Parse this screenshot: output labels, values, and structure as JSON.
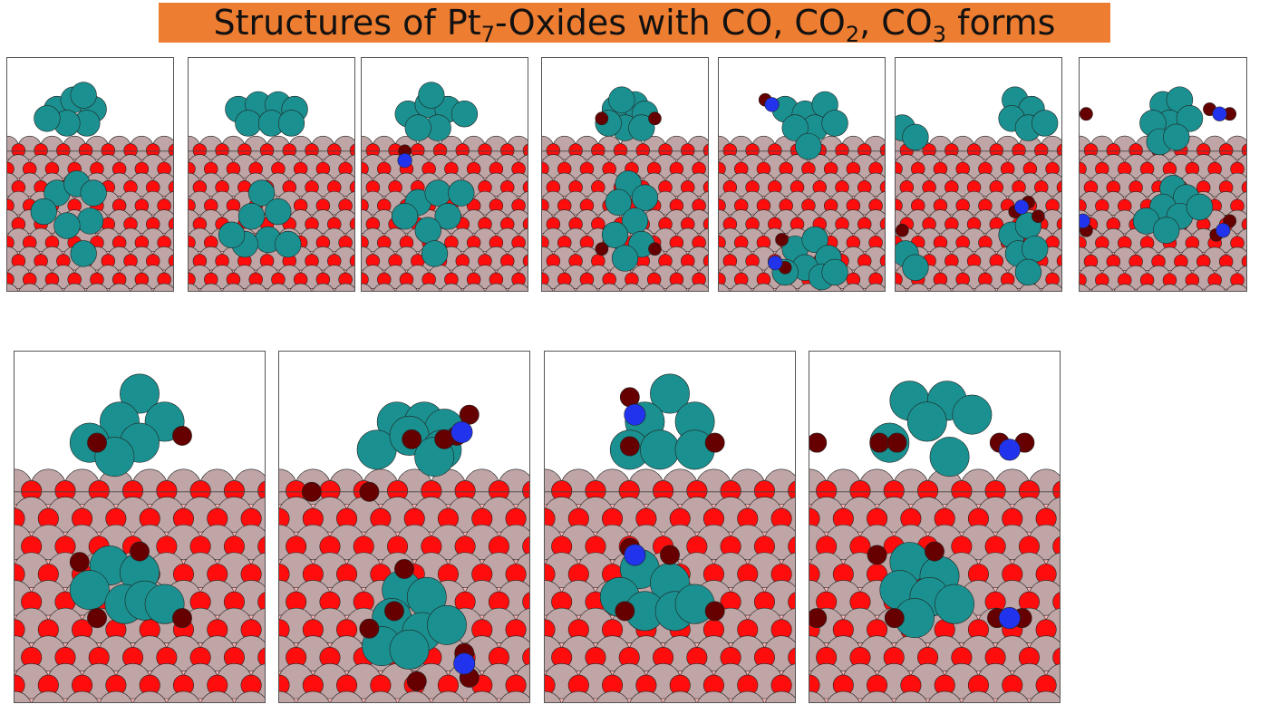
{
  "title": {
    "part1": "Structures of Pt",
    "sub1": "7",
    "part2": "-Oxides with CO, CO",
    "sub2": "2",
    "part3": ", CO",
    "sub3": "3",
    "part4": " forms"
  },
  "colors": {
    "banner": "#ED7D31",
    "platinum": "#1A9190",
    "surface_metal": "#BFA5A5",
    "lattice_oxygen": "#FF0D0D",
    "adsorbate_oxygen": "#660000",
    "carbon": "#2233EE",
    "substrate": "#FFB5B5"
  },
  "panels": [
    {
      "id": "structure-1",
      "pt": [
        [
          0.3,
          0.22
        ],
        [
          0.4,
          0.18
        ],
        [
          0.52,
          0.22
        ],
        [
          0.48,
          0.28
        ],
        [
          0.36,
          0.28
        ],
        [
          0.24,
          0.26
        ],
        [
          0.46,
          0.16
        ]
      ],
      "pt_sub": [
        [
          0.3,
          0.58
        ],
        [
          0.42,
          0.54
        ],
        [
          0.52,
          0.58
        ],
        [
          0.5,
          0.7
        ],
        [
          0.36,
          0.72
        ],
        [
          0.22,
          0.66
        ],
        [
          0.46,
          0.84
        ]
      ],
      "ads": [],
      "c": []
    },
    {
      "id": "structure-2",
      "pt": [
        [
          0.3,
          0.22
        ],
        [
          0.42,
          0.2
        ],
        [
          0.54,
          0.2
        ],
        [
          0.64,
          0.22
        ],
        [
          0.36,
          0.28
        ],
        [
          0.5,
          0.28
        ],
        [
          0.62,
          0.28
        ]
      ],
      "pt_sub": [
        [
          0.44,
          0.58
        ],
        [
          0.54,
          0.66
        ],
        [
          0.38,
          0.68
        ],
        [
          0.48,
          0.78
        ],
        [
          0.34,
          0.8
        ],
        [
          0.6,
          0.8
        ],
        [
          0.26,
          0.76
        ]
      ],
      "ads": [],
      "c": []
    },
    {
      "id": "structure-3",
      "pt": [
        [
          0.28,
          0.24
        ],
        [
          0.4,
          0.2
        ],
        [
          0.52,
          0.22
        ],
        [
          0.46,
          0.3
        ],
        [
          0.34,
          0.3
        ],
        [
          0.62,
          0.24
        ],
        [
          0.42,
          0.16
        ]
      ],
      "pt_sub": [
        [
          0.34,
          0.62
        ],
        [
          0.46,
          0.58
        ],
        [
          0.52,
          0.68
        ],
        [
          0.4,
          0.74
        ],
        [
          0.26,
          0.68
        ],
        [
          0.6,
          0.58
        ],
        [
          0.44,
          0.84
        ]
      ],
      "ads": [
        [
          0.26,
          0.4
        ]
      ],
      "c": [
        [
          0.26,
          0.44
        ]
      ]
    },
    {
      "id": "structure-4",
      "pt": [
        [
          0.44,
          0.22
        ],
        [
          0.56,
          0.2
        ],
        [
          0.62,
          0.24
        ],
        [
          0.5,
          0.3
        ],
        [
          0.4,
          0.28
        ],
        [
          0.6,
          0.3
        ],
        [
          0.48,
          0.18
        ]
      ],
      "pt_sub": [
        [
          0.52,
          0.54
        ],
        [
          0.62,
          0.6
        ],
        [
          0.46,
          0.62
        ],
        [
          0.56,
          0.7
        ],
        [
          0.44,
          0.76
        ],
        [
          0.6,
          0.8
        ],
        [
          0.5,
          0.86
        ]
      ],
      "ads": [
        [
          0.36,
          0.26
        ],
        [
          0.68,
          0.26
        ],
        [
          0.36,
          0.82
        ],
        [
          0.68,
          0.82
        ]
      ],
      "c": []
    },
    {
      "id": "structure-5",
      "pt": [
        [
          0.4,
          0.22
        ],
        [
          0.52,
          0.24
        ],
        [
          0.64,
          0.2
        ],
        [
          0.58,
          0.3
        ],
        [
          0.46,
          0.3
        ],
        [
          0.7,
          0.28
        ],
        [
          0.54,
          0.38
        ]
      ],
      "pt_sub": [
        [
          0.46,
          0.82
        ],
        [
          0.58,
          0.78
        ],
        [
          0.66,
          0.86
        ],
        [
          0.52,
          0.9
        ],
        [
          0.4,
          0.92
        ],
        [
          0.62,
          0.94
        ],
        [
          0.7,
          0.92
        ]
      ],
      "ads": [
        [
          0.28,
          0.18
        ],
        [
          0.38,
          0.78
        ],
        [
          0.4,
          0.9
        ]
      ],
      "c": [
        [
          0.32,
          0.2
        ],
        [
          0.34,
          0.88
        ]
      ]
    },
    {
      "id": "structure-6",
      "pt": [
        [
          0.72,
          0.18
        ],
        [
          0.82,
          0.22
        ],
        [
          0.7,
          0.26
        ],
        [
          0.8,
          0.3
        ],
        [
          0.9,
          0.28
        ],
        [
          0.04,
          0.3
        ],
        [
          0.12,
          0.34
        ]
      ],
      "pt_sub": [
        [
          0.7,
          0.76
        ],
        [
          0.8,
          0.72
        ],
        [
          0.74,
          0.84
        ],
        [
          0.84,
          0.82
        ],
        [
          0.06,
          0.84
        ],
        [
          0.12,
          0.9
        ],
        [
          0.8,
          0.92
        ]
      ],
      "ads": [
        [
          0.72,
          0.66
        ],
        [
          0.8,
          0.62
        ],
        [
          0.86,
          0.68
        ],
        [
          0.04,
          0.74
        ]
      ],
      "c": [
        [
          0.76,
          0.64
        ]
      ]
    },
    {
      "id": "structure-7",
      "pt": [
        [
          0.5,
          0.2
        ],
        [
          0.6,
          0.18
        ],
        [
          0.54,
          0.28
        ],
        [
          0.44,
          0.28
        ],
        [
          0.66,
          0.26
        ],
        [
          0.48,
          0.36
        ],
        [
          0.58,
          0.34
        ]
      ],
      "pt_sub": [
        [
          0.56,
          0.56
        ],
        [
          0.64,
          0.6
        ],
        [
          0.5,
          0.64
        ],
        [
          0.6,
          0.68
        ],
        [
          0.4,
          0.7
        ],
        [
          0.72,
          0.64
        ],
        [
          0.52,
          0.74
        ]
      ],
      "ads": [
        [
          0.04,
          0.24
        ],
        [
          0.78,
          0.22
        ],
        [
          0.9,
          0.24
        ],
        [
          0.04,
          0.74
        ],
        [
          0.82,
          0.76
        ],
        [
          0.9,
          0.7
        ]
      ],
      "c": [
        [
          0.84,
          0.24
        ],
        [
          0.86,
          0.74
        ],
        [
          0.02,
          0.7
        ]
      ]
    },
    {
      "id": "structure-8",
      "pt": [
        [
          0.5,
          0.12
        ],
        [
          0.42,
          0.2
        ],
        [
          0.6,
          0.2
        ],
        [
          0.5,
          0.26
        ],
        [
          0.3,
          0.26
        ],
        [
          0.4,
          0.3
        ]
      ],
      "pt_sub": [
        [
          0.38,
          0.61
        ],
        [
          0.5,
          0.63
        ],
        [
          0.3,
          0.68
        ],
        [
          0.44,
          0.72
        ],
        [
          0.52,
          0.71
        ],
        [
          0.6,
          0.72
        ]
      ],
      "ads": [
        [
          0.33,
          0.26
        ],
        [
          0.67,
          0.24
        ],
        [
          0.26,
          0.6
        ],
        [
          0.5,
          0.57
        ],
        [
          0.33,
          0.76
        ],
        [
          0.67,
          0.76
        ]
      ],
      "c": []
    },
    {
      "id": "structure-9",
      "pt": [
        [
          0.47,
          0.2
        ],
        [
          0.58,
          0.2
        ],
        [
          0.66,
          0.22
        ],
        [
          0.39,
          0.28
        ],
        [
          0.52,
          0.24
        ],
        [
          0.65,
          0.28
        ],
        [
          0.62,
          0.3
        ]
      ],
      "pt_sub": [
        [
          0.49,
          0.68
        ],
        [
          0.59,
          0.7
        ],
        [
          0.45,
          0.76
        ],
        [
          0.57,
          0.8
        ],
        [
          0.67,
          0.78
        ],
        [
          0.41,
          0.84
        ],
        [
          0.52,
          0.85
        ]
      ],
      "ads": [
        [
          0.76,
          0.18
        ],
        [
          0.71,
          0.24
        ],
        [
          0.53,
          0.25
        ],
        [
          0.66,
          0.25
        ],
        [
          0.13,
          0.4
        ],
        [
          0.36,
          0.4
        ],
        [
          0.5,
          0.62
        ],
        [
          0.36,
          0.79
        ],
        [
          0.46,
          0.74
        ],
        [
          0.55,
          0.94
        ],
        [
          0.76,
          0.93
        ],
        [
          0.74,
          0.86
        ]
      ],
      "c": [
        [
          0.73,
          0.23
        ],
        [
          0.74,
          0.89
        ]
      ]
    },
    {
      "id": "structure-10",
      "pt": [
        [
          0.5,
          0.12
        ],
        [
          0.4,
          0.2
        ],
        [
          0.6,
          0.2
        ],
        [
          0.34,
          0.28
        ],
        [
          0.46,
          0.28
        ],
        [
          0.6,
          0.28
        ]
      ],
      "pt_sub": [
        [
          0.38,
          0.62
        ],
        [
          0.5,
          0.66
        ],
        [
          0.3,
          0.7
        ],
        [
          0.4,
          0.74
        ],
        [
          0.52,
          0.74
        ],
        [
          0.6,
          0.72
        ]
      ],
      "ads": [
        [
          0.34,
          0.27
        ],
        [
          0.68,
          0.26
        ],
        [
          0.34,
          0.56
        ],
        [
          0.5,
          0.58
        ],
        [
          0.32,
          0.74
        ],
        [
          0.68,
          0.74
        ],
        [
          0.34,
          0.13
        ]
      ],
      "c": [
        [
          0.36,
          0.18
        ],
        [
          0.36,
          0.58
        ]
      ]
    },
    {
      "id": "structure-11",
      "pt": [
        [
          0.4,
          0.14
        ],
        [
          0.55,
          0.14
        ],
        [
          0.65,
          0.18
        ],
        [
          0.47,
          0.2
        ],
        [
          0.32,
          0.26
        ],
        [
          0.56,
          0.3
        ]
      ],
      "pt_sub": [
        [
          0.4,
          0.6
        ],
        [
          0.52,
          0.64
        ],
        [
          0.36,
          0.68
        ],
        [
          0.48,
          0.7
        ],
        [
          0.58,
          0.72
        ],
        [
          0.42,
          0.76
        ]
      ],
      "ads": [
        [
          0.28,
          0.26
        ],
        [
          0.35,
          0.26
        ],
        [
          0.03,
          0.26
        ],
        [
          0.76,
          0.26
        ],
        [
          0.86,
          0.26
        ],
        [
          0.27,
          0.58
        ],
        [
          0.5,
          0.57
        ],
        [
          0.03,
          0.76
        ],
        [
          0.34,
          0.76
        ],
        [
          0.75,
          0.76
        ],
        [
          0.85,
          0.76
        ]
      ],
      "c": [
        [
          0.8,
          0.28
        ],
        [
          0.8,
          0.76
        ]
      ]
    }
  ]
}
